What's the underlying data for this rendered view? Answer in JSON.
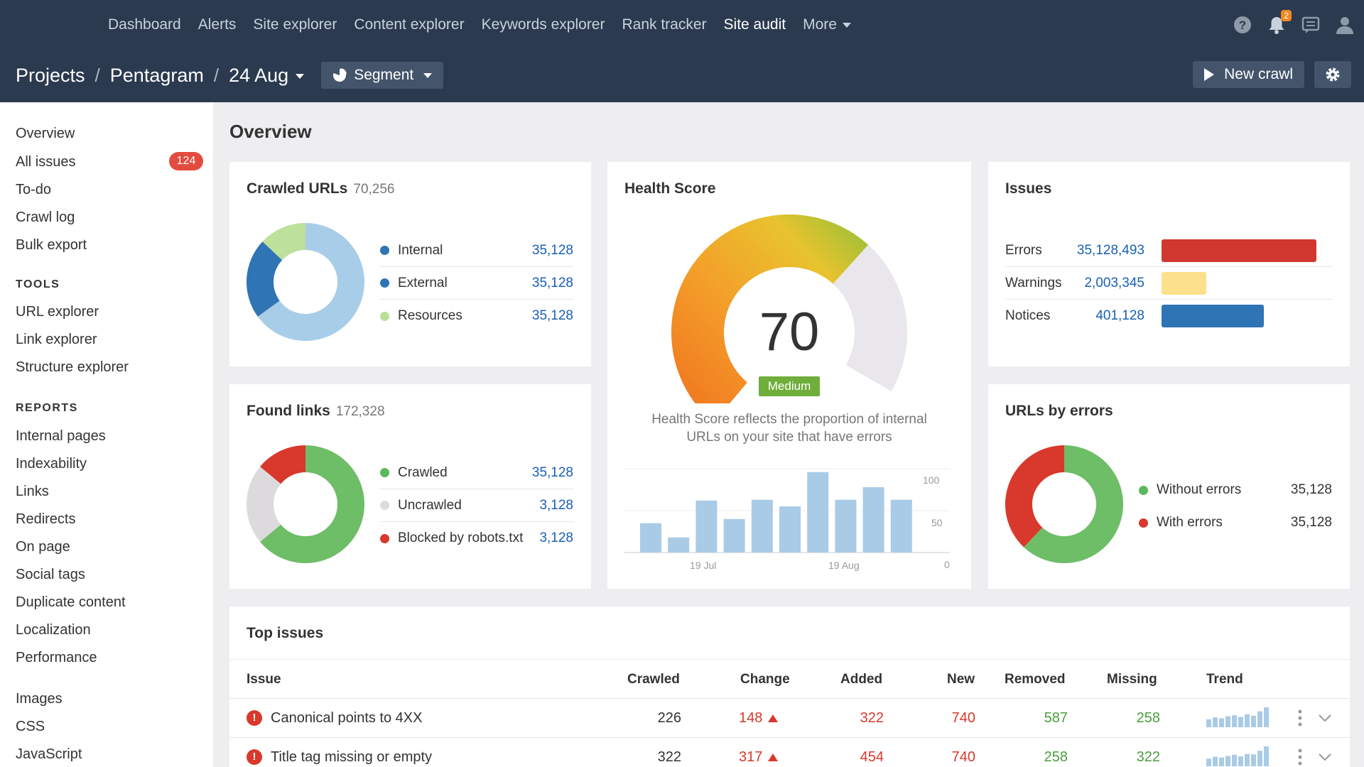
{
  "topnav": {
    "items": [
      {
        "label": "Dashboard"
      },
      {
        "label": "Alerts"
      },
      {
        "label": "Site explorer"
      },
      {
        "label": "Content explorer"
      },
      {
        "label": "Keywords explorer"
      },
      {
        "label": "Rank tracker"
      },
      {
        "label": "Site audit",
        "active": true
      },
      {
        "label": "More"
      }
    ],
    "notifications_count": "2"
  },
  "breadcrumb": {
    "projects": "Projects",
    "project": "Pentagram",
    "date": "24 Aug",
    "separator": "/"
  },
  "toolbar": {
    "segment_label": "Segment",
    "new_crawl_label": "New crawl"
  },
  "sidebar": {
    "items": [
      {
        "label": "Overview"
      },
      {
        "label": "All issues",
        "badge": "124"
      },
      {
        "label": "To-do"
      },
      {
        "label": "Crawl log"
      },
      {
        "label": "Bulk export"
      }
    ],
    "tools_heading": "TOOLS",
    "tools": [
      {
        "label": "URL explorer"
      },
      {
        "label": "Link explorer"
      },
      {
        "label": "Structure explorer"
      }
    ],
    "reports_heading": "REPORTS",
    "reports": [
      {
        "label": "Internal pages"
      },
      {
        "label": "Indexability"
      },
      {
        "label": "Links"
      },
      {
        "label": "Redirects"
      },
      {
        "label": "On page"
      },
      {
        "label": "Social tags"
      },
      {
        "label": "Duplicate content"
      },
      {
        "label": "Localization"
      },
      {
        "label": "Performance"
      }
    ],
    "resources": [
      {
        "label": "Images"
      },
      {
        "label": "CSS"
      },
      {
        "label": "JavaScript"
      }
    ]
  },
  "main": {
    "title": "Overview",
    "crawled": {
      "title": "Crawled URLs",
      "total": "70,256",
      "rows": [
        {
          "label": "Internal",
          "value": "35,128",
          "color": "#2f74b5"
        },
        {
          "label": "External",
          "value": "35,128",
          "color": "#2f74b5"
        },
        {
          "label": "Resources",
          "value": "35,128",
          "color": "#b9df96"
        }
      ],
      "donut": [
        {
          "value": 65,
          "color": "#a8cde8"
        },
        {
          "value": 22,
          "color": "#2f74b5"
        },
        {
          "value": 13,
          "color": "#bde09a"
        }
      ]
    },
    "found": {
      "title": "Found links",
      "total": "172,328",
      "rows": [
        {
          "label": "Crawled",
          "value": "35,128",
          "color": "#5cb85c"
        },
        {
          "label": "Uncrawled",
          "value": "3,128",
          "color": "#dcdcdc"
        },
        {
          "label": "Blocked by robots.txt",
          "value": "3,128",
          "color": "#d9382c"
        }
      ],
      "donut": [
        {
          "value": 64,
          "color": "#6ebd67"
        },
        {
          "value": 22,
          "color": "#dcdadd"
        },
        {
          "value": 14,
          "color": "#d9382c"
        }
      ]
    },
    "health": {
      "title": "Health Score",
      "score": "70",
      "score_value": 70,
      "rating": "Medium",
      "desc_line1": "Health Score reflects the proportion of internal",
      "desc_line2": "URLs on your site that have errors",
      "chart_data": {
        "type": "bar",
        "values": [
          35,
          18,
          62,
          40,
          63,
          55,
          96,
          63,
          78,
          63
        ],
        "ylim": [
          0,
          100
        ],
        "yticks": [
          "100",
          "50",
          "0"
        ],
        "xticks": [
          "19 Jul",
          "19 Aug"
        ]
      }
    },
    "issues": {
      "title": "Issues",
      "rows": [
        {
          "label": "Errors",
          "value": "35,128,493",
          "fraction": 1.0,
          "color": "#d0382f"
        },
        {
          "label": "Warnings",
          "value": "2,003,345",
          "fraction": 0.29,
          "color": "#fde08b"
        },
        {
          "label": "Notices",
          "value": "401,128",
          "fraction": 0.66,
          "color": "#2f74b5"
        }
      ]
    },
    "urls_errors": {
      "title": "URLs by errors",
      "rows": [
        {
          "label": "Without errors",
          "value": "35,128",
          "color": "#5cb85c"
        },
        {
          "label": "With errors",
          "value": "35,128",
          "color": "#d9382c"
        }
      ],
      "donut": [
        {
          "value": 62,
          "color": "#6ebd67"
        },
        {
          "value": 38,
          "color": "#d9382c"
        }
      ]
    },
    "top_issues": {
      "title": "Top issues",
      "columns": [
        "Issue",
        "Crawled",
        "Change",
        "Added",
        "New",
        "Removed",
        "Missing",
        "Trend"
      ],
      "rows": [
        {
          "issue": "Canonical points to 4XX",
          "crawled": "226",
          "change": "148",
          "added": "322",
          "new": "740",
          "removed": "587",
          "missing": "258",
          "trend": [
            40,
            50,
            45,
            55,
            60,
            52,
            65,
            58,
            80,
            100
          ]
        },
        {
          "issue": "Title tag missing or empty",
          "crawled": "322",
          "change": "317",
          "added": "454",
          "new": "740",
          "removed": "258",
          "missing": "322",
          "trend": [
            38,
            48,
            44,
            52,
            58,
            50,
            62,
            60,
            78,
            100
          ]
        }
      ]
    }
  }
}
